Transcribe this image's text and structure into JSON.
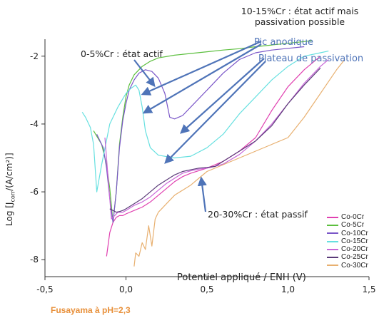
{
  "chart_data": {
    "type": "line",
    "xlabel": "Potentiel appliqué / ENH (V)",
    "ylabel_parts": [
      "Log [J",
      "corr",
      "/(A/cm²)]"
    ],
    "xlim": [
      -0.5,
      1.5
    ],
    "ylim": [
      -8.5,
      -1.5
    ],
    "x_ticks": [
      -0.5,
      0.0,
      0.5,
      1.0,
      1.5
    ],
    "x_tick_labels": [
      "-0,5",
      "0,0",
      "0,5",
      "1,0",
      "1,5"
    ],
    "y_ticks": [
      -8,
      -6,
      -4,
      -2
    ],
    "y_tick_labels": [
      "-8",
      "-6",
      "-4",
      "-2"
    ],
    "grid": false,
    "legend_position": "bottom-right",
    "series": [
      {
        "name": "Co-0Cr",
        "color": "#e040b0",
        "x": [
          -0.12,
          -0.1,
          -0.08,
          -0.06,
          -0.04,
          -0.02,
          0.0,
          0.05,
          0.1,
          0.15,
          0.2,
          0.25,
          0.3,
          0.35,
          0.4,
          0.5,
          0.6,
          0.7,
          0.8,
          0.9,
          1.0,
          1.1,
          1.2
        ],
        "y": [
          -7.9,
          -7.2,
          -6.9,
          -6.75,
          -6.7,
          -6.7,
          -6.65,
          -6.55,
          -6.45,
          -6.3,
          -6.1,
          -5.9,
          -5.7,
          -5.55,
          -5.45,
          -5.3,
          -5.1,
          -4.8,
          -4.4,
          -3.6,
          -2.9,
          -2.4,
          -2.0
        ]
      },
      {
        "name": "Co-5Cr",
        "color": "#5cbf3e",
        "x": [
          -0.2,
          -0.15,
          -0.12,
          -0.1,
          -0.08,
          -0.06,
          -0.04,
          -0.02,
          0.0,
          0.02,
          0.05,
          0.08,
          0.1,
          0.15,
          0.2,
          0.3,
          0.4,
          0.5,
          0.6,
          0.7,
          0.8,
          0.9,
          1.0,
          1.1,
          1.15
        ],
        "y": [
          -4.2,
          -4.6,
          -5.2,
          -5.9,
          -6.9,
          -6.0,
          -4.6,
          -3.8,
          -3.2,
          -2.85,
          -2.55,
          -2.4,
          -2.3,
          -2.15,
          -2.05,
          -1.97,
          -1.92,
          -1.87,
          -1.82,
          -1.78,
          -1.72,
          -1.67,
          -1.62,
          -1.57,
          -1.54
        ]
      },
      {
        "name": "Co-10Cr",
        "color": "#7a56c8",
        "x": [
          -0.18,
          -0.14,
          -0.12,
          -0.1,
          -0.08,
          -0.06,
          -0.04,
          -0.02,
          0.0,
          0.02,
          0.05,
          0.08,
          0.12,
          0.16,
          0.2,
          0.24,
          0.27,
          0.3,
          0.35,
          0.4,
          0.5,
          0.6,
          0.7,
          0.8,
          0.9,
          1.0,
          1.1
        ],
        "y": [
          -4.3,
          -4.7,
          -5.3,
          -6.2,
          -6.9,
          -6.0,
          -4.7,
          -3.9,
          -3.4,
          -3.0,
          -2.7,
          -2.5,
          -2.4,
          -2.45,
          -2.65,
          -3.1,
          -3.8,
          -3.85,
          -3.75,
          -3.5,
          -3.0,
          -2.5,
          -2.1,
          -1.9,
          -1.82,
          -1.77,
          -1.72
        ]
      },
      {
        "name": "Co-15Cr",
        "color": "#66e0e0",
        "x": [
          -0.27,
          -0.25,
          -0.22,
          -0.2,
          -0.18,
          -0.15,
          -0.1,
          -0.05,
          0.0,
          0.03,
          0.06,
          0.08,
          0.1,
          0.12,
          0.15,
          0.2,
          0.3,
          0.4,
          0.5,
          0.6,
          0.7,
          0.8,
          0.9,
          1.0,
          1.1,
          1.2,
          1.25
        ],
        "y": [
          -3.65,
          -3.8,
          -4.1,
          -4.6,
          -6.0,
          -5.2,
          -4.0,
          -3.5,
          -3.1,
          -2.95,
          -2.85,
          -3.0,
          -3.5,
          -4.2,
          -4.7,
          -4.92,
          -5.0,
          -4.95,
          -4.7,
          -4.3,
          -3.7,
          -3.2,
          -2.7,
          -2.3,
          -2.0,
          -1.9,
          -1.85
        ]
      },
      {
        "name": "Co-20Cr",
        "color": "#c866d8",
        "x": [
          -0.13,
          -0.11,
          -0.09,
          -0.07,
          -0.05,
          -0.02,
          0.0,
          0.05,
          0.1,
          0.15,
          0.2,
          0.25,
          0.3,
          0.35,
          0.4,
          0.45,
          0.5,
          0.55,
          0.6,
          0.7,
          0.8,
          0.9,
          1.0,
          1.1,
          1.2,
          1.25
        ],
        "y": [
          -4.4,
          -5.6,
          -6.8,
          -6.7,
          -6.6,
          -6.6,
          -6.55,
          -6.4,
          -6.3,
          -6.15,
          -5.95,
          -5.75,
          -5.6,
          -5.45,
          -5.38,
          -5.33,
          -5.3,
          -5.25,
          -5.18,
          -4.9,
          -4.5,
          -4.0,
          -3.4,
          -2.8,
          -2.3,
          -2.1
        ]
      },
      {
        "name": "Co-25Cr",
        "color": "#5a3a78",
        "x": [
          -0.1,
          -0.08,
          -0.06,
          -0.04,
          -0.02,
          0.0,
          0.05,
          0.1,
          0.15,
          0.2,
          0.25,
          0.3,
          0.35,
          0.4,
          0.45,
          0.5,
          0.55,
          0.6,
          0.7,
          0.8,
          0.9,
          1.0,
          1.1,
          1.2
        ],
        "y": [
          -6.5,
          -6.55,
          -6.6,
          -6.58,
          -6.55,
          -6.5,
          -6.35,
          -6.2,
          -6.0,
          -5.8,
          -5.65,
          -5.5,
          -5.4,
          -5.35,
          -5.3,
          -5.28,
          -5.25,
          -5.1,
          -4.8,
          -4.5,
          -4.05,
          -3.4,
          -2.85,
          -2.35
        ]
      },
      {
        "name": "Co-30Cr",
        "color": "#e8b070",
        "x": [
          0.05,
          0.06,
          0.08,
          0.1,
          0.12,
          0.14,
          0.16,
          0.18,
          0.2,
          0.22,
          0.24,
          0.26,
          0.28,
          0.3,
          0.35,
          0.4,
          0.45,
          0.5,
          0.6,
          0.7,
          0.8,
          0.9,
          1.0,
          1.1,
          1.2,
          1.3,
          1.35
        ],
        "y": [
          -8.2,
          -7.8,
          -7.9,
          -7.5,
          -7.7,
          -7.0,
          -7.6,
          -6.8,
          -6.6,
          -6.5,
          -6.4,
          -6.3,
          -6.2,
          -6.1,
          -5.95,
          -5.8,
          -5.6,
          -5.4,
          -5.2,
          -5.0,
          -4.8,
          -4.6,
          -4.4,
          -3.8,
          -3.1,
          -2.4,
          -2.1
        ]
      }
    ],
    "annotations": [
      {
        "text_lines": [
          "10-15%Cr : état actif mais",
          "passivation possible"
        ],
        "color": "#222222"
      },
      {
        "text_lines": [
          "0-5%Cr : état actif"
        ],
        "color": "#222222"
      },
      {
        "text_lines": [
          "Pic anodique"
        ],
        "color": "#4f74b8"
      },
      {
        "text_lines": [
          "Plateau de passivation"
        ],
        "color": "#4f74b8"
      },
      {
        "text_lines": [
          "20-30%Cr : état passif"
        ],
        "color": "#222222"
      }
    ]
  },
  "caption": "Fusayama à pH=2,3",
  "colors": {
    "axis": "#333333",
    "arrow": "#4f74b8",
    "caption": "#e8903a"
  }
}
